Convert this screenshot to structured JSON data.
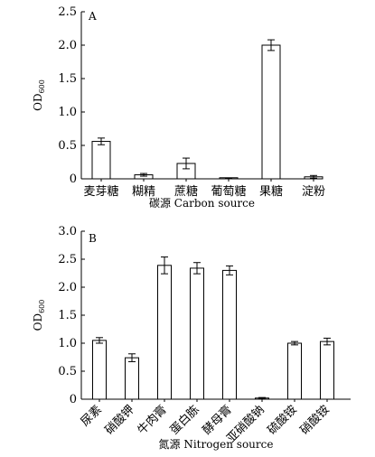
{
  "chart_data": [
    {
      "type": "bar",
      "panel_label": "A",
      "categories": [
        "麦芽糖",
        "糊精",
        "蔗糖",
        "葡萄糖",
        "果糖",
        "淀粉"
      ],
      "values": [
        0.56,
        0.06,
        0.23,
        0.0,
        2.0,
        0.03
      ],
      "errors": [
        0.05,
        0.02,
        0.08,
        0.01,
        0.08,
        0.02
      ],
      "xlabel": "碳源 Carbon source",
      "ylabel": "OD600",
      "ylabel_main": "OD",
      "ylabel_sub": "600",
      "ylim": [
        0,
        2.5
      ],
      "yticks": [
        0,
        0.5,
        1.0,
        1.5,
        2.0,
        2.5
      ],
      "ytick_labels": [
        "0",
        "0.5",
        "1.0",
        "1.5",
        "2.0",
        "2.5"
      ],
      "grid": false,
      "bar_fill": "#ffffff",
      "bar_stroke": "#000000"
    },
    {
      "type": "bar",
      "panel_label": "B",
      "categories": [
        "尿素",
        "硝酸钾",
        "牛肉膏",
        "蛋白胨",
        "酵母膏",
        "亚硝酸钠",
        "硫酸铵",
        "硝酸铵"
      ],
      "values": [
        1.05,
        0.74,
        2.39,
        2.34,
        2.3,
        0.02,
        1.0,
        1.03
      ],
      "errors": [
        0.05,
        0.07,
        0.15,
        0.1,
        0.08,
        0.01,
        0.03,
        0.06
      ],
      "xlabel": "氮源 Nitrogen source",
      "ylabel": "OD600",
      "ylabel_main": "OD",
      "ylabel_sub": "600",
      "ylim": [
        0,
        3.0
      ],
      "yticks": [
        0,
        0.5,
        1.0,
        1.5,
        2.0,
        2.5,
        3.0
      ],
      "ytick_labels": [
        "0",
        "0.5",
        "1.0",
        "1.5",
        "2.0",
        "2.5",
        "3.0"
      ],
      "grid": false,
      "bar_fill": "#ffffff",
      "bar_stroke": "#000000"
    }
  ]
}
